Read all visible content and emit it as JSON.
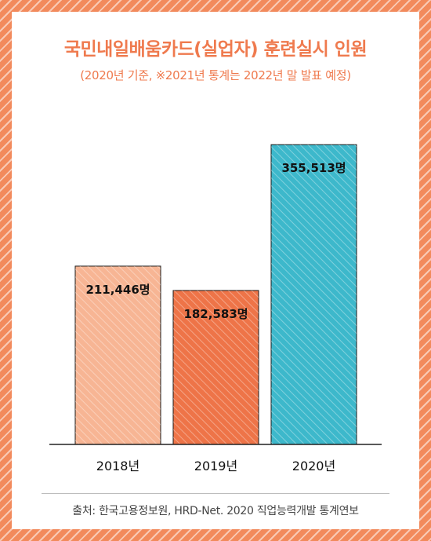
{
  "title": "국민내일배움카드(실업자) 훈련실시 인원",
  "subtitle": "(2020년 기준, ※2021년 통계는 2022년 말 발표 예정)",
  "source": "출처: 한국고용정보원, HRD-Net. 2020 직업능력개발 통계연보",
  "colors": {
    "title": "#ef7a4e",
    "bars": [
      "#f7b594",
      "#ee7448",
      "#3db8cb"
    ],
    "border": "#f28a5c"
  },
  "chart_data": {
    "type": "bar",
    "title": "국민내일배움카드(실업자) 훈련실시 인원",
    "categories": [
      "2018년",
      "2019년",
      "2020년"
    ],
    "values": [
      211446,
      182583,
      355513
    ],
    "value_labels": [
      "211,446명",
      "182,583명",
      "355,513명"
    ],
    "unit": "명",
    "xlabel": "",
    "ylabel": "",
    "ylim": [
      0,
      420000
    ],
    "grid": false,
    "legend": "none"
  }
}
